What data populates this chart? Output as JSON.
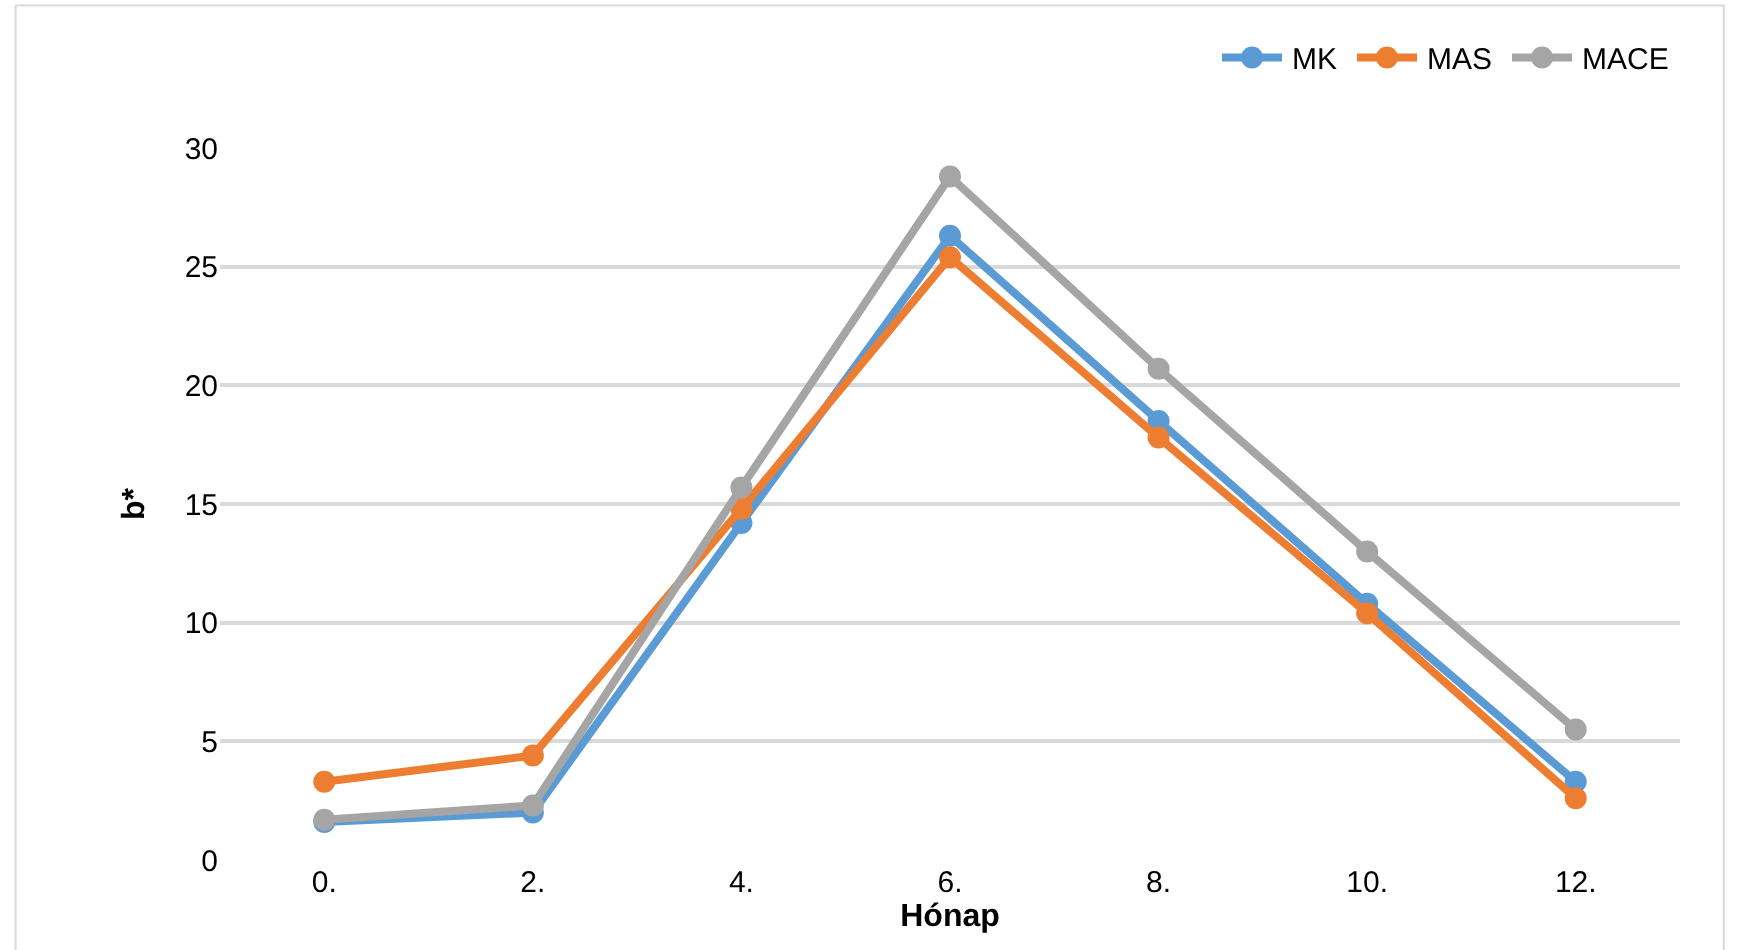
{
  "chart_data": {
    "type": "line",
    "xlabel": "Hónap",
    "ylabel": "b*",
    "categories": [
      "0.",
      "2.",
      "4.",
      "6.",
      "8.",
      "10.",
      "12."
    ],
    "series": [
      {
        "name": "MK",
        "color": "#5b9bd5",
        "values": [
          1.6,
          2.0,
          14.2,
          26.3,
          18.5,
          10.8,
          3.3
        ]
      },
      {
        "name": "MAS",
        "color": "#ed7d31",
        "values": [
          3.3,
          4.4,
          14.8,
          25.4,
          17.8,
          10.4,
          2.6
        ]
      },
      {
        "name": "MACE",
        "color": "#a5a5a5",
        "values": [
          1.7,
          2.3,
          15.7,
          28.8,
          20.7,
          13.0,
          5.5
        ]
      }
    ],
    "ylim": [
      0,
      30
    ],
    "yticks": [
      0,
      5,
      10,
      15,
      20,
      25,
      30
    ],
    "grid": "y",
    "legend": "top right",
    "marker": "circle",
    "line_style": "solid"
  }
}
